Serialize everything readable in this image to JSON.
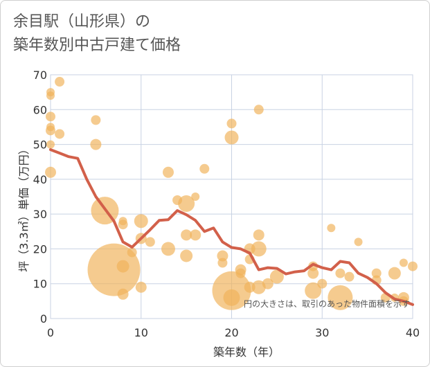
{
  "title_line1": "余目駅（山形県）の",
  "title_line2": "築年数別中古戸建て価格",
  "note": "円の大きさは、取引のあった物件面積を示す",
  "chart_data": {
    "type": "scatter",
    "xlabel": "築年数（年）",
    "ylabel": "坪（3.3㎡）単価（万円）",
    "xlim": [
      0,
      40
    ],
    "ylim": [
      0,
      70
    ],
    "xticks": [
      0,
      10,
      20,
      30,
      40
    ],
    "yticks": [
      0,
      10,
      20,
      30,
      40,
      50,
      60,
      70
    ],
    "grid": true,
    "colors": {
      "bubble": "#f0b35a",
      "line": "#d2604a"
    },
    "bubbles": [
      {
        "x": 0,
        "y": 65,
        "s": 6
      },
      {
        "x": 0,
        "y": 64,
        "s": 6
      },
      {
        "x": 1,
        "y": 68,
        "s": 7
      },
      {
        "x": 0,
        "y": 58,
        "s": 7
      },
      {
        "x": 0,
        "y": 55,
        "s": 6
      },
      {
        "x": 0,
        "y": 54,
        "s": 7
      },
      {
        "x": 1,
        "y": 53,
        "s": 7
      },
      {
        "x": 0,
        "y": 50,
        "s": 6
      },
      {
        "x": 0,
        "y": 42,
        "s": 8
      },
      {
        "x": 5,
        "y": 57,
        "s": 7
      },
      {
        "x": 5,
        "y": 50,
        "s": 8
      },
      {
        "x": 6,
        "y": 31,
        "s": 20
      },
      {
        "x": 7,
        "y": 14,
        "s": 38
      },
      {
        "x": 8,
        "y": 28,
        "s": 6
      },
      {
        "x": 8,
        "y": 27,
        "s": 7
      },
      {
        "x": 8,
        "y": 15,
        "s": 9
      },
      {
        "x": 8,
        "y": 7,
        "s": 8
      },
      {
        "x": 9,
        "y": 19,
        "s": 7
      },
      {
        "x": 10,
        "y": 28,
        "s": 10
      },
      {
        "x": 10,
        "y": 23,
        "s": 8
      },
      {
        "x": 10,
        "y": 9,
        "s": 8
      },
      {
        "x": 11,
        "y": 22,
        "s": 7
      },
      {
        "x": 13,
        "y": 42,
        "s": 8
      },
      {
        "x": 13,
        "y": 20,
        "s": 10
      },
      {
        "x": 14,
        "y": 34,
        "s": 7
      },
      {
        "x": 15,
        "y": 33,
        "s": 12
      },
      {
        "x": 15,
        "y": 24,
        "s": 8
      },
      {
        "x": 15,
        "y": 18,
        "s": 9
      },
      {
        "x": 16,
        "y": 35,
        "s": 6
      },
      {
        "x": 16,
        "y": 24,
        "s": 8
      },
      {
        "x": 17,
        "y": 43,
        "s": 7
      },
      {
        "x": 19,
        "y": 18,
        "s": 8
      },
      {
        "x": 19,
        "y": 16,
        "s": 7
      },
      {
        "x": 20,
        "y": 56,
        "s": 7
      },
      {
        "x": 20,
        "y": 52,
        "s": 10
      },
      {
        "x": 20,
        "y": 8,
        "s": 28
      },
      {
        "x": 20,
        "y": 6,
        "s": 12
      },
      {
        "x": 21,
        "y": 14,
        "s": 8
      },
      {
        "x": 21,
        "y": 13,
        "s": 7
      },
      {
        "x": 22,
        "y": 20,
        "s": 8
      },
      {
        "x": 22,
        "y": 17,
        "s": 7
      },
      {
        "x": 22,
        "y": 9,
        "s": 8
      },
      {
        "x": 23,
        "y": 60,
        "s": 7
      },
      {
        "x": 23,
        "y": 24,
        "s": 8
      },
      {
        "x": 23,
        "y": 20,
        "s": 11
      },
      {
        "x": 23,
        "y": 9,
        "s": 10
      },
      {
        "x": 24,
        "y": 10,
        "s": 8
      },
      {
        "x": 25,
        "y": 12,
        "s": 10
      },
      {
        "x": 29,
        "y": 15,
        "s": 7
      },
      {
        "x": 29,
        "y": 13,
        "s": 8
      },
      {
        "x": 29,
        "y": 8,
        "s": 12
      },
      {
        "x": 30,
        "y": 10,
        "s": 7
      },
      {
        "x": 31,
        "y": 26,
        "s": 6
      },
      {
        "x": 32,
        "y": 13,
        "s": 7
      },
      {
        "x": 32,
        "y": 6,
        "s": 18
      },
      {
        "x": 33,
        "y": 12,
        "s": 7
      },
      {
        "x": 34,
        "y": 22,
        "s": 6
      },
      {
        "x": 36,
        "y": 13,
        "s": 7
      },
      {
        "x": 36,
        "y": 11,
        "s": 7
      },
      {
        "x": 37,
        "y": 6,
        "s": 7
      },
      {
        "x": 38,
        "y": 13,
        "s": 9
      },
      {
        "x": 38,
        "y": 6,
        "s": 6
      },
      {
        "x": 39,
        "y": 16,
        "s": 6
      },
      {
        "x": 39,
        "y": 6,
        "s": 8
      },
      {
        "x": 39,
        "y": 5,
        "s": 7
      },
      {
        "x": 40,
        "y": 15,
        "s": 7
      }
    ],
    "line": {
      "x": [
        0,
        1,
        2,
        3,
        4,
        5,
        6,
        7,
        8,
        9,
        10,
        11,
        12,
        13,
        14,
        15,
        16,
        17,
        18,
        19,
        20,
        21,
        22,
        23,
        24,
        25,
        26,
        27,
        28,
        29,
        30,
        31,
        32,
        33,
        34,
        35,
        36,
        37,
        38,
        39,
        40
      ],
      "y": [
        48.5,
        47.5,
        46.5,
        46,
        40,
        35,
        31.5,
        28,
        22,
        20.5,
        23,
        25.5,
        28.2,
        28.4,
        31,
        29.8,
        28.2,
        25,
        26,
        22,
        20.4,
        20,
        18.8,
        14,
        14.6,
        14.4,
        12.8,
        13.4,
        13.7,
        15.6,
        14.6,
        14,
        16.4,
        16,
        13,
        11.8,
        10,
        7.4,
        5.6,
        5,
        4
      ]
    }
  }
}
